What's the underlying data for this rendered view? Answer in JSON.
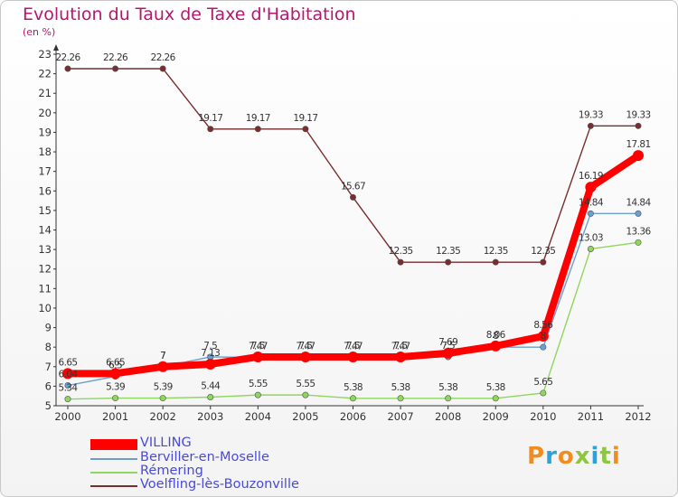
{
  "header": {
    "title": "Evolution du Taux de Taxe d'Habitation",
    "subtitle": "(en %)"
  },
  "logo": {
    "text": "Proxiti",
    "colors": [
      "#f18d1e",
      "#2aa3d8",
      "#f18d1e",
      "#8dc63f",
      "#2aa3d8",
      "#8dc63f",
      "#f18d1e"
    ]
  },
  "chart_data": {
    "type": "line",
    "title": "Evolution du Taux de Taxe d'Habitation",
    "subtitle": "(en %)",
    "xlabel": "",
    "ylabel": "",
    "x": [
      "2000",
      "2001",
      "2002",
      "2003",
      "2004",
      "2005",
      "2006",
      "2007",
      "2008",
      "2009",
      "2010",
      "2011",
      "2012"
    ],
    "ylim": [
      5,
      23
    ],
    "yticks": [
      5,
      6,
      7,
      8,
      9,
      10,
      11,
      12,
      13,
      14,
      15,
      16,
      17,
      18,
      19,
      20,
      21,
      22,
      23
    ],
    "grid": false,
    "legend_position": "bottom-left",
    "series": [
      {
        "name": "VILLING",
        "color": "#ff0000",
        "values": [
          6.65,
          6.65,
          7,
          7.13,
          7.5,
          7.5,
          7.5,
          7.5,
          7.69,
          8.06,
          8.56,
          16.19,
          17.81
        ],
        "labels": [
          "6.65",
          "6.65",
          "7",
          "7.13",
          "7.5",
          "7.5",
          "7.5",
          "7.5",
          "7.69",
          "8.06",
          "8.56",
          "16.19",
          "17.81"
        ]
      },
      {
        "name": "Berviller-en-Moselle",
        "color": "#6a9fd0",
        "values": [
          6.04,
          6.5,
          7,
          7.5,
          7.47,
          7.47,
          7.47,
          7.47,
          7.5,
          8,
          8,
          14.84,
          14.84
        ],
        "labels": [
          "6.04",
          "6.5",
          "7",
          "7.5",
          "7.47",
          "7.47",
          "7.47",
          "7.47",
          "7.5",
          "8",
          "8",
          "14.84",
          "14.84"
        ]
      },
      {
        "name": "Rémering",
        "color": "#8fd65f",
        "values": [
          5.34,
          5.39,
          5.39,
          5.44,
          5.55,
          5.55,
          5.38,
          5.38,
          5.38,
          5.38,
          5.65,
          13.03,
          13.36
        ],
        "labels": [
          "5.34",
          "5.39",
          "5.39",
          "5.44",
          "5.55",
          "5.55",
          "5.38",
          "5.38",
          "5.38",
          "5.38",
          "5.65",
          "13.03",
          "13.36"
        ]
      },
      {
        "name": "Voelfling-lès-Bouzonville",
        "color": "#7a2d2d",
        "values": [
          22.26,
          22.26,
          22.26,
          19.17,
          19.17,
          19.17,
          15.67,
          12.35,
          12.35,
          12.35,
          12.35,
          19.33,
          19.33
        ],
        "labels": [
          "22.26",
          "22.26",
          "22.26",
          "19.17",
          "19.17",
          "19.17",
          "15.67",
          "12.35",
          "12.35",
          "12.35",
          "12.35",
          "19.33",
          "19.33"
        ]
      }
    ]
  }
}
